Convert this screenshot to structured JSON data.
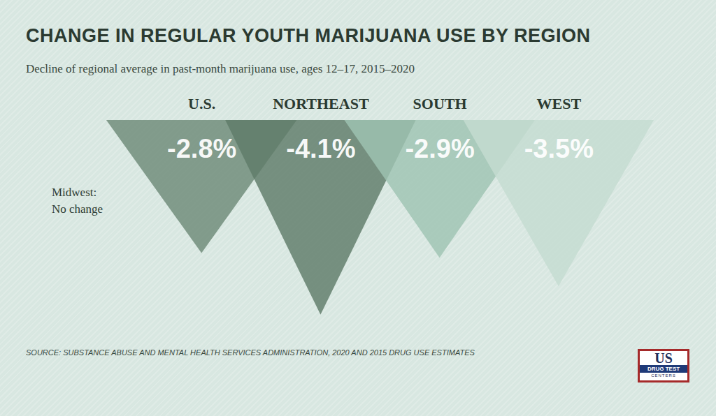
{
  "chart_data": {
    "type": "bar",
    "title": "CHANGE IN REGULAR YOUTH MARIJUANA USE BY REGION",
    "subtitle": "Decline of regional average in past-month marijuana use, ages 12–17, 2015–2020",
    "categories": [
      "U.S.",
      "NORTHEAST",
      "SOUTH",
      "WEST"
    ],
    "values": [
      -2.8,
      -4.1,
      -2.9,
      -3.5
    ],
    "value_labels": [
      "-2.8%",
      "-4.1%",
      "-2.9%",
      "-3.5%"
    ],
    "data_labels": true,
    "colors": [
      "#6e8a77",
      "#5f7b69",
      "#9fc3b2",
      "#c5dcd1"
    ],
    "ylim": [
      -4.5,
      0
    ],
    "tick_labels": false,
    "annotations": [
      "Midwest:\nNo change"
    ],
    "source": "SOURCE: SUBSTANCE ABUSE AND MENTAL HEALTH SERVICES ADMINISTRATION, 2020 AND 2015 DRUG USE ESTIMATES",
    "logo": [
      "US",
      "DRUG TEST",
      "CENTERS"
    ]
  }
}
